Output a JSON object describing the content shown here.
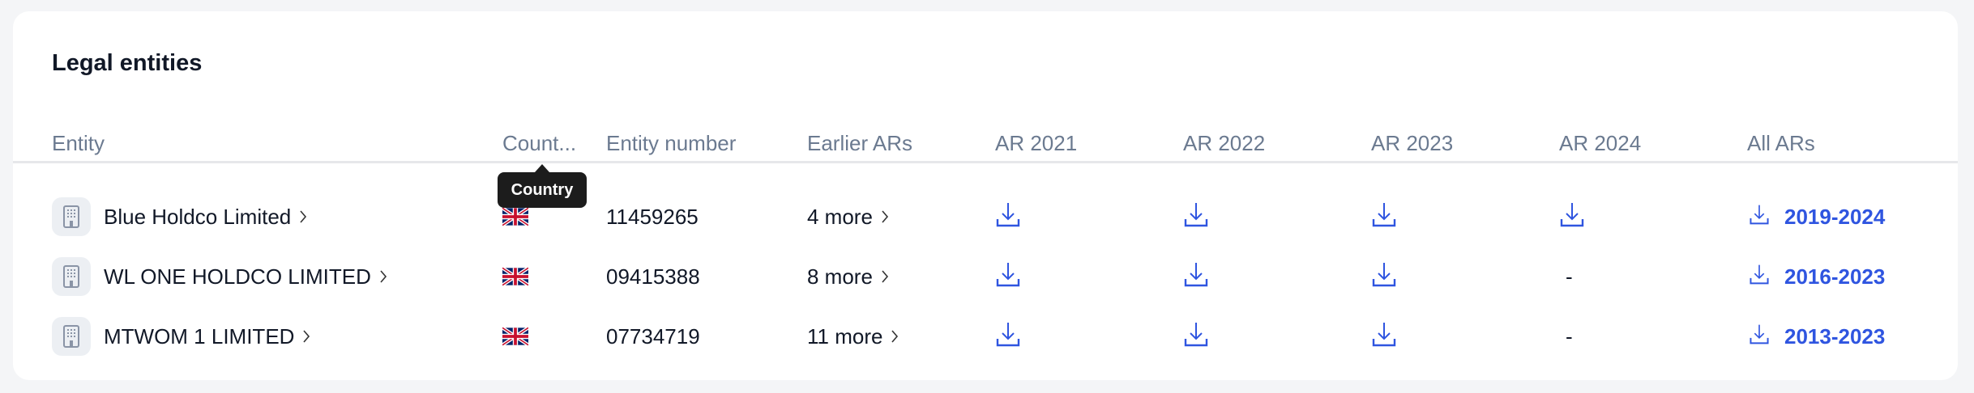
{
  "title": "Legal entities",
  "columns": [
    "Entity",
    "Count...",
    "Entity number",
    "Earlier ARs",
    "AR 2021",
    "AR 2022",
    "AR 2023",
    "AR 2024",
    "All ARs"
  ],
  "tooltip": "Country",
  "colors": {
    "accent": "#2f55e0",
    "header_text": "#6b7a90",
    "text": "#111827"
  },
  "rows": [
    {
      "entity": "Blue Holdco Limited",
      "country_flag": "uk-flag-icon",
      "number": "11459265",
      "earlier": "4 more",
      "ar2021": "download",
      "ar2022": "download",
      "ar2023": "download",
      "ar2024": "download",
      "all": "2019-2024"
    },
    {
      "entity": "WL ONE HOLDCO LIMITED",
      "country_flag": "uk-flag-icon",
      "number": "09415388",
      "earlier": "8 more",
      "ar2021": "download",
      "ar2022": "download",
      "ar2023": "download",
      "ar2024": "-",
      "all": "2016-2023"
    },
    {
      "entity": "MTWOM 1 LIMITED",
      "country_flag": "uk-flag-icon",
      "number": "07734719",
      "earlier": "11 more",
      "ar2021": "download",
      "ar2022": "download",
      "ar2023": "download",
      "ar2024": "-",
      "all": "2013-2023"
    }
  ]
}
